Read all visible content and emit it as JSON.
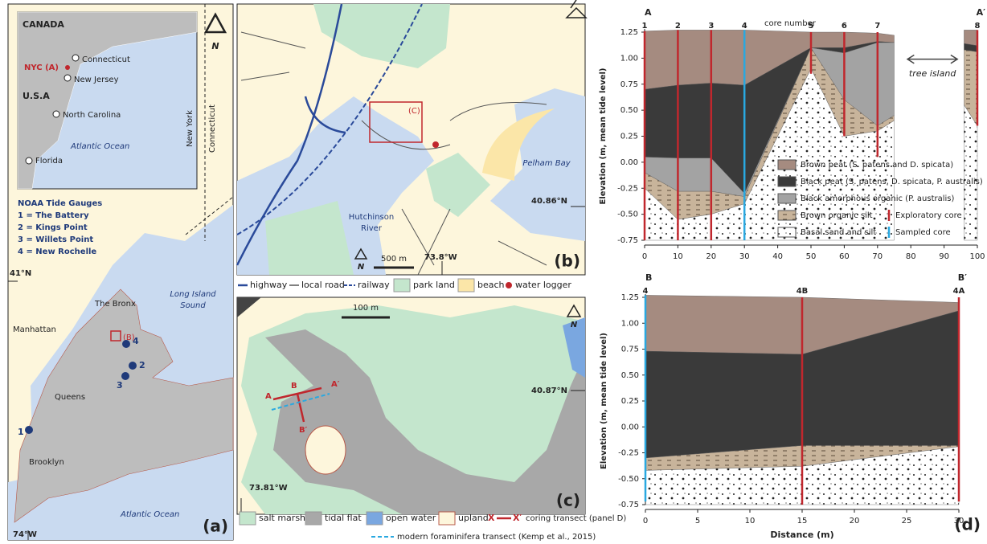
{
  "panel_a": {
    "inset": {
      "country_1": "CANADA",
      "country_2": "U.S.A",
      "city": "NYC (A)",
      "states": [
        "Connecticut",
        "New Jersey",
        "North Carolina",
        "Florida"
      ],
      "ocean": "Atlantic Ocean"
    },
    "north": "N",
    "tide_gauges": {
      "title": "NOAA Tide Gauges",
      "items": [
        "1 = The Battery",
        "2 = Kings Point",
        "3 = Willets Point",
        "4 = New Rochelle"
      ],
      "markers": [
        "1",
        "2",
        "3",
        "4"
      ]
    },
    "state_line": [
      "New York",
      "Connecticut"
    ],
    "latitude": "41°N",
    "longitude": "74°W",
    "places": [
      "The Bronx",
      "Manhattan",
      "Queens",
      "Brooklyn"
    ],
    "sound": [
      "Long Island",
      "Sound"
    ],
    "ocean": "Atlantic Ocean",
    "site": "(B)",
    "label": "(a)"
  },
  "panel_b": {
    "site": "(C)",
    "bay": "Pelham Bay",
    "river": [
      "Hutchinson",
      "River"
    ],
    "latitude": "40.86°N",
    "longitude": "73.8°W",
    "scale": "500 m",
    "north": "N",
    "label": "(b)",
    "legend": [
      "highway",
      "local road",
      "railway",
      "park land",
      "beach",
      "water logger"
    ]
  },
  "panel_c": {
    "scale": "100 m",
    "north": "N",
    "latitude": "40.87°N",
    "longitude": "73.81°W",
    "transect_labels": [
      "A",
      "B",
      "A′",
      "B′"
    ],
    "label": "(c)",
    "legend": [
      "salt marsh",
      "tidal flat",
      "open water",
      "upland"
    ],
    "transect_legend": {
      "symbol_start": "X",
      "symbol_end": "X′",
      "text": "coring transect (panel D)"
    },
    "foram_legend": "modern foraminifera transect (Kemp et al., 2015)"
  },
  "panel_d": {
    "label": "(d)"
  },
  "chart_data": [
    {
      "type": "cross-section",
      "start_label": "A",
      "end_label": "A′",
      "ylabel": "Elevation (m, mean tide level)",
      "xlim": [
        0,
        100
      ],
      "ylim": [
        -0.75,
        1.25
      ],
      "xticks": [
        0,
        10,
        20,
        30,
        40,
        50,
        60,
        70,
        80,
        90,
        100
      ],
      "yticks": [
        1.25,
        {
          "value": 1,
          "label": "1.00"
        },
        0.75,
        {
          "value": 0.5,
          "label": "0.50"
        },
        0.25,
        {
          "value": 0,
          "label": "0.00"
        },
        -0.25,
        {
          "value": -0.5,
          "label": "-0.50"
        },
        -0.75
      ],
      "break": [
        75,
        96
      ],
      "legend": true,
      "x": [
        0,
        10,
        20,
        30,
        50,
        60,
        70,
        75,
        96,
        100
      ],
      "series": [
        {
          "name": "Brown peat (S. patens and D. spicata)",
          "color": "#a58b80",
          "values": [
            1.26,
            1.27,
            1.27,
            1.27,
            1.25,
            1.25,
            1.24,
            1.22,
            1.27,
            1.27
          ]
        },
        {
          "name": "Black peat (S. patens, D. spicata, P. australis)",
          "color": "#3a3a3a",
          "values": [
            0.7,
            0.74,
            0.76,
            0.74,
            1.1,
            1.1,
            1.16,
            1.15,
            1.14,
            1.12
          ]
        },
        {
          "name": "Black amorphous organic (P. australis)",
          "color": "#a3a3a3",
          "values": [
            0.05,
            0.04,
            0.04,
            -0.3,
            1.1,
            1.05,
            1.15,
            1.15,
            1.08,
            1.06
          ]
        },
        {
          "name": "Brown organic silt",
          "color": "#c8b49b",
          "pattern": "dash",
          "values": [
            -0.1,
            -0.28,
            -0.28,
            -0.33,
            1.1,
            0.6,
            0.35,
            0.45,
            1.08,
            1.06
          ]
        },
        {
          "name": "Basal sand and silt",
          "color": "#ffffff",
          "pattern": "dots",
          "values": [
            -0.25,
            -0.55,
            -0.5,
            -0.4,
            0.9,
            0.25,
            0.3,
            0.4,
            0.55,
            0.35
          ]
        }
      ],
      "core_types": [
        {
          "name": "Exploratory core",
          "color": "#c0272d"
        },
        {
          "name": "Sampled core",
          "color": "#29a8e0"
        }
      ],
      "cores": [
        {
          "label": "1",
          "x": 0,
          "bottom": -0.75,
          "sampled": false
        },
        {
          "label": "2",
          "x": 10,
          "bottom": -0.75,
          "sampled": false
        },
        {
          "label": "3",
          "x": 20,
          "bottom": -0.75,
          "sampled": false
        },
        {
          "label": "4",
          "x": 30,
          "bottom": -0.75,
          "sampled": true
        },
        {
          "label": "5",
          "x": 50,
          "bottom": 0.85,
          "sampled": false
        },
        {
          "label": "6",
          "x": 60,
          "bottom": 0.25,
          "sampled": false
        },
        {
          "label": "7",
          "x": 70,
          "bottom": 0.05,
          "sampled": false
        },
        {
          "label": "8",
          "x": 100,
          "bottom": 0.35,
          "sampled": false
        }
      ],
      "annotations": [
        "core number",
        "tree island"
      ]
    },
    {
      "type": "cross-section",
      "start_label": "B",
      "end_label": "B′",
      "ylabel": "Elevation (m, mean tide level)",
      "xlabel": "Distance (m)",
      "xlim": [
        0,
        30
      ],
      "ylim": [
        -0.75,
        1.25
      ],
      "xticks": [
        0,
        5,
        10,
        15,
        20,
        25,
        30
      ],
      "yticks": [
        1.25,
        {
          "value": 1,
          "label": "1.00"
        },
        0.75,
        {
          "value": 0.5,
          "label": "0.50"
        },
        0.25,
        {
          "value": 0,
          "label": "0.00"
        },
        -0.25,
        {
          "value": -0.5,
          "label": "-0.50"
        },
        -0.75
      ],
      "legend": false,
      "x": [
        0,
        15,
        30
      ],
      "series": [
        {
          "color": "#a58b80",
          "values": [
            1.27,
            1.25,
            1.2
          ]
        },
        {
          "color": "#3a3a3a",
          "values": [
            0.73,
            0.7,
            1.12
          ]
        },
        {
          "color": "#a3a3a3",
          "values": [
            -0.3,
            -0.18,
            -0.18
          ]
        },
        {
          "color": "#c8b49b",
          "pattern": "dash",
          "values": [
            -0.3,
            -0.18,
            -0.18
          ]
        },
        {
          "color": "#ffffff",
          "pattern": "dots",
          "values": [
            -0.42,
            -0.38,
            -0.19
          ]
        }
      ],
      "core_types": [
        {
          "color": "#c0272d"
        },
        {
          "color": "#29a8e0"
        }
      ],
      "cores": [
        {
          "label": "4",
          "x": 0,
          "bottom": -0.72,
          "sampled": true
        },
        {
          "label": "4B",
          "x": 15,
          "bottom": -0.75,
          "sampled": false
        },
        {
          "label": "4A",
          "x": 30,
          "bottom": -0.72,
          "sampled": false
        }
      ]
    }
  ]
}
